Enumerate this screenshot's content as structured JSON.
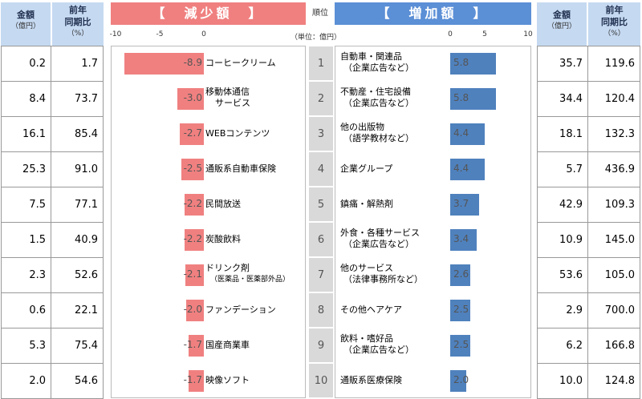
{
  "headers": {
    "amount": "金額",
    "amount_unit": "（億円）",
    "yoy_line1": "前年",
    "yoy_line2": "同期比",
    "yoy_unit": "（%）",
    "decrease_title": "【　減少額　】",
    "increase_title": "【　増加額　】",
    "rank": "順位",
    "unit_note": "（単位：億円）"
  },
  "axis_left_ticks": [
    "-10",
    "-5",
    "0"
  ],
  "axis_right_ticks": [
    "0",
    "5",
    "10"
  ],
  "chart_data": [
    {
      "type": "bar",
      "title": "減少額",
      "xlim": [
        -10,
        0
      ],
      "categories": [
        "コーヒークリーム",
        "移動体通信サービス",
        "WEBコンテンツ",
        "通販系自動車保険",
        "民間放送",
        "炭酸飲料",
        "ドリンク剤（医薬品・医薬部外品）",
        "ファンデーション",
        "国産商業車",
        "映像ソフト"
      ],
      "values": [
        -8.9,
        -3.0,
        -2.7,
        -2.5,
        -2.2,
        -2.2,
        -2.1,
        -2.0,
        -1.7,
        -1.7
      ]
    },
    {
      "type": "bar",
      "title": "増加額",
      "xlim": [
        0,
        10
      ],
      "categories": [
        "自動車・関連品（企業広告など）",
        "不動産・住宅設備（企業広告など）",
        "他の出版物（語学教材など）",
        "企業グループ",
        "鎮痛・解熱剤",
        "外食・各種サービス（企業広告など）",
        "他のサービス（法律事務所など）",
        "その他ヘアケア",
        "飲料・嗜好品（企業広告など）",
        "通販系医療保険"
      ],
      "values": [
        5.8,
        5.8,
        4.4,
        4.4,
        3.7,
        3.4,
        2.6,
        2.5,
        2.5,
        2.0
      ]
    }
  ],
  "rows": [
    {
      "rank": "1",
      "left_amount": "0.2",
      "left_yoy": "1.7",
      "dec_line1": "コーヒークリーム",
      "dec_line2": "",
      "dec_value": "-8.9",
      "inc_line1": "自動車・関連品",
      "inc_line2": "（企業広告など）",
      "inc_value": "5.8",
      "right_amount": "35.7",
      "right_yoy": "119.6"
    },
    {
      "rank": "2",
      "left_amount": "8.4",
      "left_yoy": "73.7",
      "dec_line1": "移動体通信",
      "dec_line2": "サービス",
      "dec_value": "-3.0",
      "inc_line1": "不動産・住宅設備",
      "inc_line2": "（企業広告など）",
      "inc_value": "5.8",
      "right_amount": "34.4",
      "right_yoy": "120.4"
    },
    {
      "rank": "3",
      "left_amount": "16.1",
      "left_yoy": "85.4",
      "dec_line1": "WEBコンテンツ",
      "dec_line2": "",
      "dec_value": "-2.7",
      "inc_line1": "他の出版物",
      "inc_line2": "（語学教材など）",
      "inc_value": "4.4",
      "right_amount": "18.1",
      "right_yoy": "132.3"
    },
    {
      "rank": "4",
      "left_amount": "25.3",
      "left_yoy": "91.0",
      "dec_line1": "通販系自動車保険",
      "dec_line2": "",
      "dec_value": "-2.5",
      "inc_line1": "企業グループ",
      "inc_line2": "",
      "inc_value": "4.4",
      "right_amount": "5.7",
      "right_yoy": "436.9"
    },
    {
      "rank": "5",
      "left_amount": "7.5",
      "left_yoy": "77.1",
      "dec_line1": "民間放送",
      "dec_line2": "",
      "dec_value": "-2.2",
      "inc_line1": "鎮痛・解熱剤",
      "inc_line2": "",
      "inc_value": "3.7",
      "right_amount": "42.9",
      "right_yoy": "109.3"
    },
    {
      "rank": "6",
      "left_amount": "1.5",
      "left_yoy": "40.9",
      "dec_line1": "炭酸飲料",
      "dec_line2": "",
      "dec_value": "-2.2",
      "inc_line1": "外食・各種サービス",
      "inc_line2": "（企業広告など）",
      "inc_value": "3.4",
      "right_amount": "10.9",
      "right_yoy": "145.0"
    },
    {
      "rank": "7",
      "left_amount": "2.3",
      "left_yoy": "52.6",
      "dec_line1": "ドリンク剤",
      "dec_line2": "（医薬品・医薬部外品）",
      "dec_value": "-2.1",
      "inc_line1": "他のサービス",
      "inc_line2": "（法律事務所など）",
      "inc_value": "2.6",
      "right_amount": "53.6",
      "right_yoy": "105.0"
    },
    {
      "rank": "8",
      "left_amount": "0.6",
      "left_yoy": "22.1",
      "dec_line1": "ファンデーション",
      "dec_line2": "",
      "dec_value": "-2.0",
      "inc_line1": "その他ヘアケア",
      "inc_line2": "",
      "inc_value": "2.5",
      "right_amount": "2.9",
      "right_yoy": "700.0"
    },
    {
      "rank": "9",
      "left_amount": "5.3",
      "left_yoy": "75.4",
      "dec_line1": "国産商業車",
      "dec_line2": "",
      "dec_value": "-1.7",
      "inc_line1": "飲料・嗜好品",
      "inc_line2": "（企業広告など）",
      "inc_value": "2.5",
      "right_amount": "6.2",
      "right_yoy": "166.8"
    },
    {
      "rank": "10",
      "left_amount": "2.0",
      "left_yoy": "54.6",
      "dec_line1": "映像ソフト",
      "dec_line2": "",
      "dec_value": "-1.7",
      "inc_line1": "通販系医療保険",
      "inc_line2": "",
      "inc_value": "2.0",
      "right_amount": "10.0",
      "right_yoy": "124.8"
    }
  ],
  "colors": {
    "decrease": "#f08080",
    "increase": "#4f81bd",
    "header_bg": "#c5d9f1",
    "rank_bg": "#d9d9d9"
  }
}
